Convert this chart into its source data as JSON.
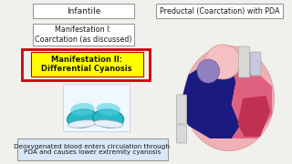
{
  "bg_color": "#f0f0ec",
  "title_infantile": "Infantile",
  "title_preductal": "Preductal (Coarctation) with PDA",
  "box1_text": "Manifestation I:\nCoarctation (as discussed)",
  "box2_text": "Manifestation II:\nDifferential Cyanosis",
  "bottom_text": "Deoxygenated blood enters circulation through\nPDA and causes lower extremity cyanosis",
  "box1_bg": "#ffffff",
  "box2_bg": "#ffff00",
  "box2_border": "#cc0000",
  "outer_border": "#cc0000",
  "text_color": "#1a1a1a",
  "box_border": "#999999",
  "bottom_bg": "#d8e8f8",
  "heart_pink_outer": "#f0b0b8",
  "heart_pink_left": "#e06080",
  "heart_blue_right": "#1a1a80",
  "heart_aorta": "#f5c0c0",
  "heart_purple": "#9080c0",
  "heart_vessel_gray": "#d8d8d8"
}
